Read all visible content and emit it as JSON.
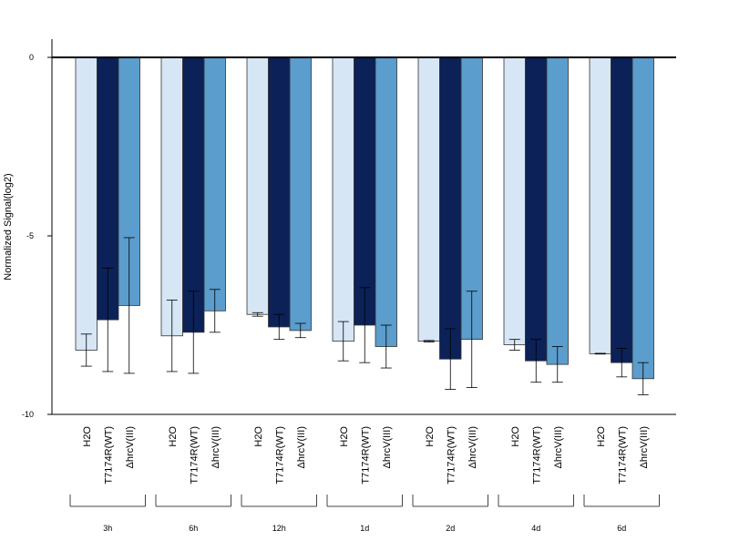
{
  "chart_data": {
    "type": "bar",
    "title": "",
    "xlabel": "",
    "ylabel": "Normalized Signal(log2)",
    "ylim": [
      -10,
      0.5
    ],
    "y_ticks": [
      0,
      -5,
      -10
    ],
    "y_tick_labels": [
      "0",
      "-5",
      "-10"
    ],
    "groups": [
      "3h",
      "6h",
      "12h",
      "1d",
      "2d",
      "4d",
      "6d"
    ],
    "bar_labels": [
      "H2O",
      "T7174R(WT)",
      "ΔhrcV(III)"
    ],
    "series": [
      {
        "name": "H2O",
        "color": "#d6e6f5",
        "values": [
          -8.2,
          -7.8,
          -7.2,
          -7.95,
          -7.95,
          -8.05,
          -8.3
        ],
        "error": [
          0.45,
          1.0,
          0.05,
          0.55,
          0.02,
          0.15,
          0.01
        ]
      },
      {
        "name": "T7174R(WT)",
        "color": "#0b2157",
        "values": [
          -7.35,
          -7.7,
          -7.55,
          -7.5,
          -8.45,
          -8.5,
          -8.55
        ],
        "error": [
          1.45,
          1.15,
          0.35,
          1.05,
          0.85,
          0.6,
          0.4
        ]
      },
      {
        "name": "ΔhrcV(III)",
        "color": "#5b9dcc",
        "values": [
          -6.95,
          -7.1,
          -7.65,
          -8.1,
          -7.9,
          -8.6,
          -9.0
        ],
        "error": [
          1.9,
          0.6,
          0.2,
          0.6,
          1.35,
          0.5,
          0.45
        ]
      }
    ],
    "grid": false,
    "legend": "none"
  }
}
